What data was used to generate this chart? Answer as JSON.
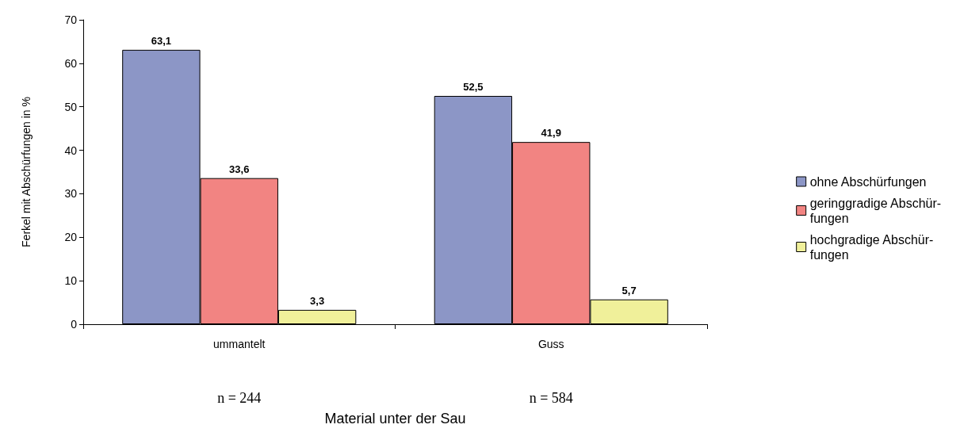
{
  "chart_data": {
    "type": "bar",
    "xlabel": "Material unter der Sau",
    "ylabel": "Ferkel mit Abschürfungen in %",
    "categories": [
      "ummantelt",
      "Guss"
    ],
    "series": [
      {
        "name": "ohne Abschürfungen",
        "color": "#8c96c6",
        "values": [
          63.1,
          52.5
        ],
        "value_labels": [
          "63,1",
          "52,5"
        ]
      },
      {
        "name": "geringgradige Abschür-\nfungen",
        "color": "#f28482",
        "values": [
          33.6,
          41.9
        ],
        "value_labels": [
          "33,6",
          "41,9"
        ]
      },
      {
        "name": "hochgradige Abschür-\nfungen",
        "color": "#f0f09a",
        "values": [
          3.3,
          5.7
        ],
        "value_labels": [
          "3,3",
          "5,7"
        ]
      }
    ],
    "ylim": [
      0,
      70
    ],
    "yticks": [
      0,
      10,
      20,
      30,
      40,
      50,
      60,
      70
    ],
    "grid": false,
    "legend": "right",
    "annotations": [
      "n = 244",
      "n = 584"
    ]
  }
}
